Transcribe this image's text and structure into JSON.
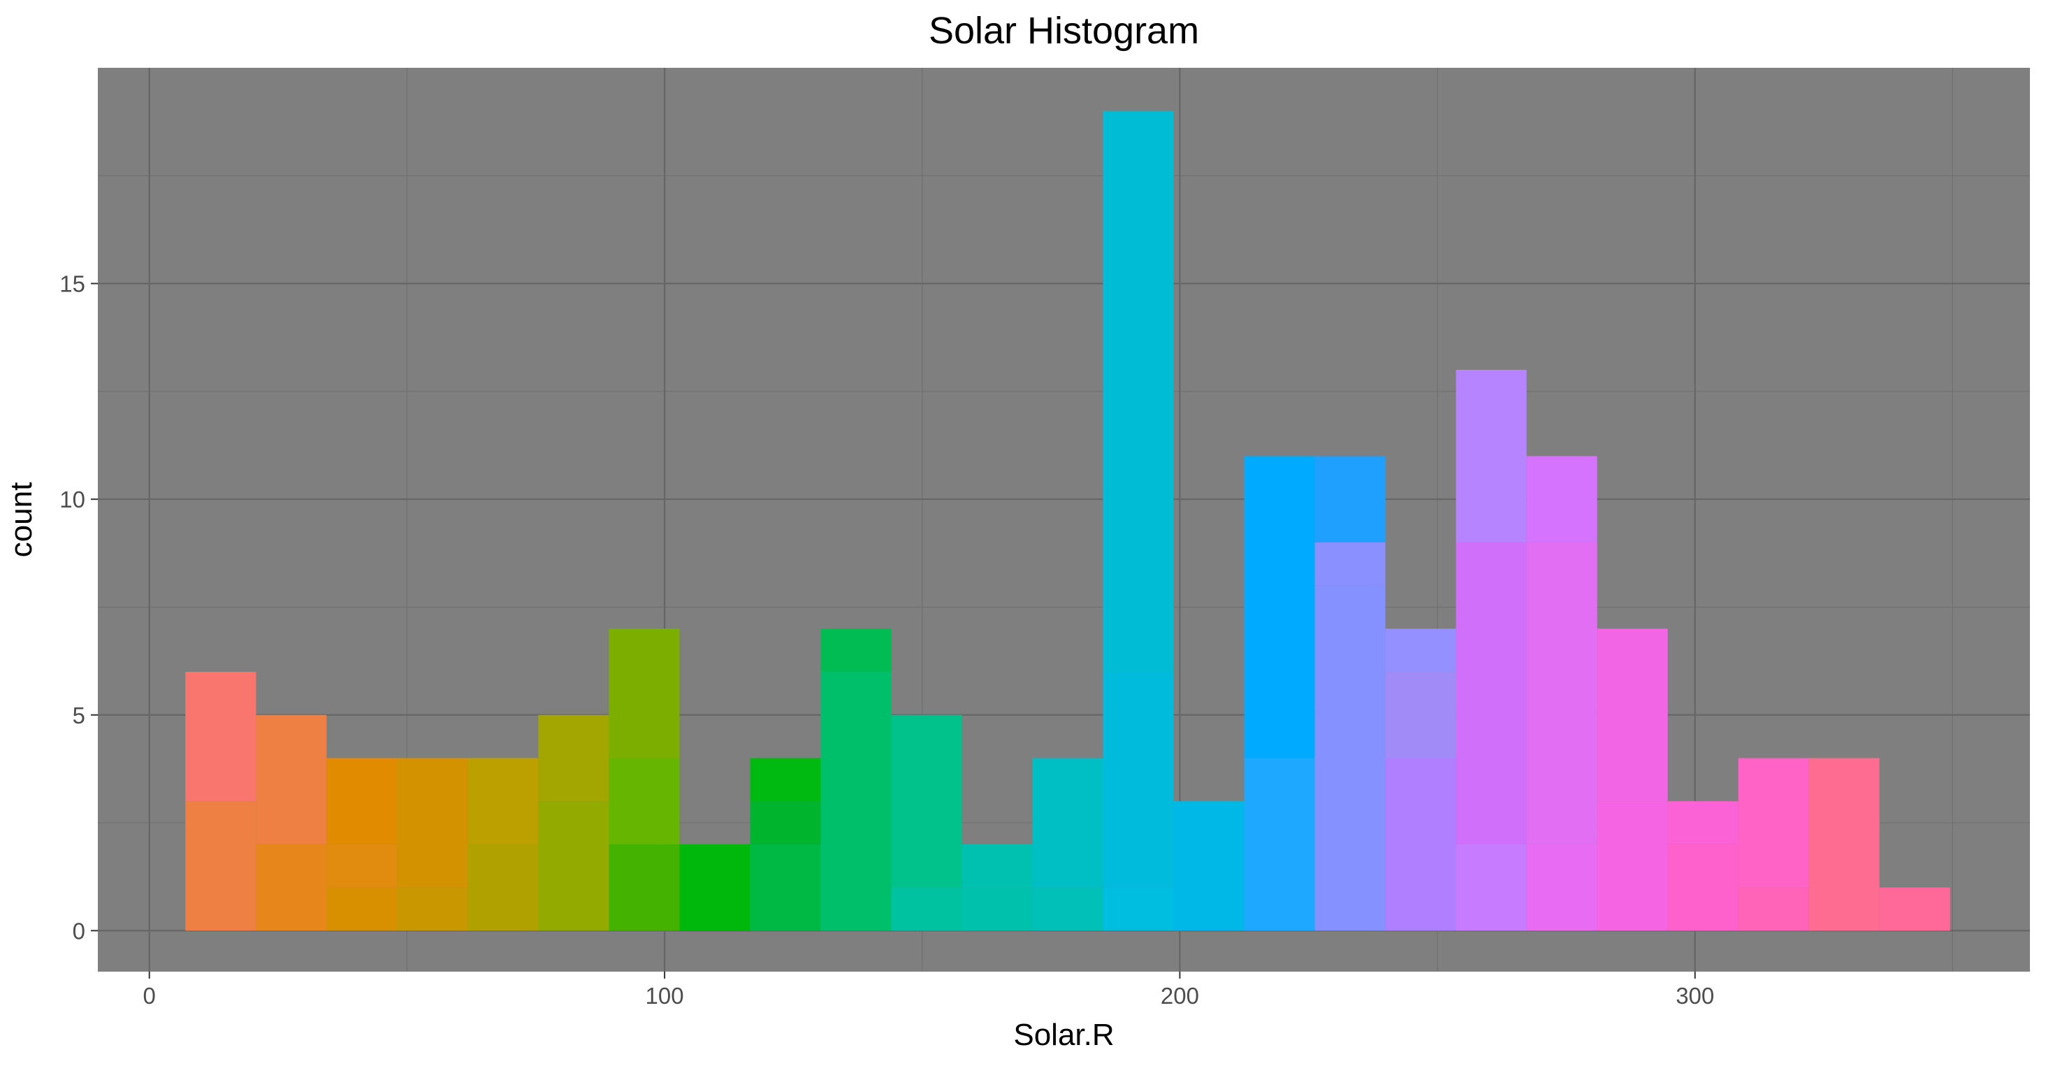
{
  "chart_data": {
    "type": "bar",
    "title": "Solar Histogram",
    "xlabel": "Solar.R",
    "ylabel": "count",
    "xlim": [
      -10,
      365
    ],
    "ylim": [
      -0.95,
      20
    ],
    "x_ticks": [
      0,
      100,
      200,
      300
    ],
    "x_tick_labels": [
      "0",
      "100",
      "200",
      "300"
    ],
    "y_ticks": [
      0,
      5,
      10,
      15
    ],
    "y_tick_labels": [
      "0",
      "5",
      "10",
      "15"
    ],
    "grid": true,
    "legend": "none",
    "panel_background": "#7f7f7f",
    "bin_width": 13.7,
    "bins": [
      {
        "x_start": 7.0,
        "x_end": 20.7,
        "count": 6,
        "segments": [
          {
            "value": 3,
            "color": "#EE8043"
          },
          {
            "value": 3,
            "color": "#F8766D"
          }
        ]
      },
      {
        "x_start": 20.7,
        "x_end": 34.4,
        "count": 5,
        "segments": [
          {
            "value": 2,
            "color": "#E7861B"
          },
          {
            "value": 3,
            "color": "#EE8043"
          }
        ]
      },
      {
        "x_start": 34.4,
        "x_end": 48.1,
        "count": 4,
        "segments": [
          {
            "value": 1,
            "color": "#D89000"
          },
          {
            "value": 1,
            "color": "#E28C0F"
          },
          {
            "value": 2,
            "color": "#E08B00"
          }
        ]
      },
      {
        "x_start": 48.1,
        "x_end": 61.8,
        "count": 4,
        "segments": [
          {
            "value": 1,
            "color": "#C99800"
          },
          {
            "value": 3,
            "color": "#D39200"
          }
        ]
      },
      {
        "x_start": 61.8,
        "x_end": 75.5,
        "count": 4,
        "segments": [
          {
            "value": 2,
            "color": "#B0A000"
          },
          {
            "value": 2,
            "color": "#BBA000"
          }
        ]
      },
      {
        "x_start": 75.5,
        "x_end": 89.2,
        "count": 5,
        "segments": [
          {
            "value": 3,
            "color": "#93AA00"
          },
          {
            "value": 2,
            "color": "#A3A500"
          }
        ]
      },
      {
        "x_start": 89.2,
        "x_end": 102.9,
        "count": 7,
        "segments": [
          {
            "value": 2,
            "color": "#44B200"
          },
          {
            "value": 2,
            "color": "#66B500"
          },
          {
            "value": 3,
            "color": "#7CAE00"
          }
        ]
      },
      {
        "x_start": 102.9,
        "x_end": 116.6,
        "count": 2,
        "segments": [
          {
            "value": 2,
            "color": "#00B70C"
          }
        ]
      },
      {
        "x_start": 116.6,
        "x_end": 130.3,
        "count": 4,
        "segments": [
          {
            "value": 2,
            "color": "#00B944"
          },
          {
            "value": 1,
            "color": "#00B42D"
          },
          {
            "value": 1,
            "color": "#00BA12"
          }
        ]
      },
      {
        "x_start": 130.3,
        "x_end": 144.0,
        "count": 7,
        "segments": [
          {
            "value": 6,
            "color": "#00BF6A"
          },
          {
            "value": 1,
            "color": "#00BC53"
          }
        ]
      },
      {
        "x_start": 144.0,
        "x_end": 157.7,
        "count": 5,
        "segments": [
          {
            "value": 1,
            "color": "#00C2A0"
          },
          {
            "value": 4,
            "color": "#00C28A"
          }
        ]
      },
      {
        "x_start": 157.7,
        "x_end": 171.4,
        "count": 2,
        "segments": [
          {
            "value": 1,
            "color": "#00C1AB"
          },
          {
            "value": 1,
            "color": "#00C0AF"
          }
        ]
      },
      {
        "x_start": 171.4,
        "x_end": 185.1,
        "count": 4,
        "segments": [
          {
            "value": 1,
            "color": "#00C0B8"
          },
          {
            "value": 3,
            "color": "#00BFC4"
          }
        ]
      },
      {
        "x_start": 185.1,
        "x_end": 198.8,
        "count": 19,
        "segments": [
          {
            "value": 1,
            "color": "#00BEE0"
          },
          {
            "value": 5,
            "color": "#00BBDB"
          },
          {
            "value": 13,
            "color": "#00BCD4"
          }
        ]
      },
      {
        "x_start": 198.8,
        "x_end": 212.5,
        "count": 3,
        "segments": [
          {
            "value": 3,
            "color": "#00B8E7"
          }
        ]
      },
      {
        "x_start": 212.5,
        "x_end": 226.2,
        "count": 11,
        "segments": [
          {
            "value": 4,
            "color": "#1FA8FF"
          },
          {
            "value": 7,
            "color": "#00AAFE"
          }
        ]
      },
      {
        "x_start": 226.2,
        "x_end": 239.9,
        "count": 11,
        "segments": [
          {
            "value": 8,
            "color": "#8591FF"
          },
          {
            "value": 1,
            "color": "#8A90FF"
          },
          {
            "value": 2,
            "color": "#1FA0FF"
          }
        ]
      },
      {
        "x_start": 239.9,
        "x_end": 253.6,
        "count": 7,
        "segments": [
          {
            "value": 4,
            "color": "#B07FFF"
          },
          {
            "value": 2,
            "color": "#A18CF7"
          },
          {
            "value": 1,
            "color": "#9590FF"
          }
        ]
      },
      {
        "x_start": 253.6,
        "x_end": 267.3,
        "count": 13,
        "segments": [
          {
            "value": 2,
            "color": "#C77CFF"
          },
          {
            "value": 7,
            "color": "#D070FA"
          },
          {
            "value": 4,
            "color": "#B584FE"
          }
        ]
      },
      {
        "x_start": 267.3,
        "x_end": 281.0,
        "count": 11,
        "segments": [
          {
            "value": 2,
            "color": "#E76BF3"
          },
          {
            "value": 7,
            "color": "#E26FF3"
          },
          {
            "value": 2,
            "color": "#D573FE"
          }
        ]
      },
      {
        "x_start": 281.0,
        "x_end": 294.7,
        "count": 7,
        "segments": [
          {
            "value": 3,
            "color": "#F564E3"
          },
          {
            "value": 4,
            "color": "#F266E6"
          }
        ]
      },
      {
        "x_start": 294.7,
        "x_end": 308.4,
        "count": 3,
        "segments": [
          {
            "value": 2,
            "color": "#FF61CC"
          },
          {
            "value": 1,
            "color": "#FA62D6"
          }
        ]
      },
      {
        "x_start": 308.4,
        "x_end": 322.1,
        "count": 4,
        "segments": [
          {
            "value": 1,
            "color": "#FF64B8"
          },
          {
            "value": 3,
            "color": "#FF63C5"
          }
        ]
      },
      {
        "x_start": 322.1,
        "x_end": 335.8,
        "count": 4,
        "segments": [
          {
            "value": 4,
            "color": "#FF6C91"
          }
        ]
      },
      {
        "x_start": 335.8,
        "x_end": 349.5,
        "count": 1,
        "segments": [
          {
            "value": 1,
            "color": "#FF6999"
          }
        ]
      }
    ]
  }
}
